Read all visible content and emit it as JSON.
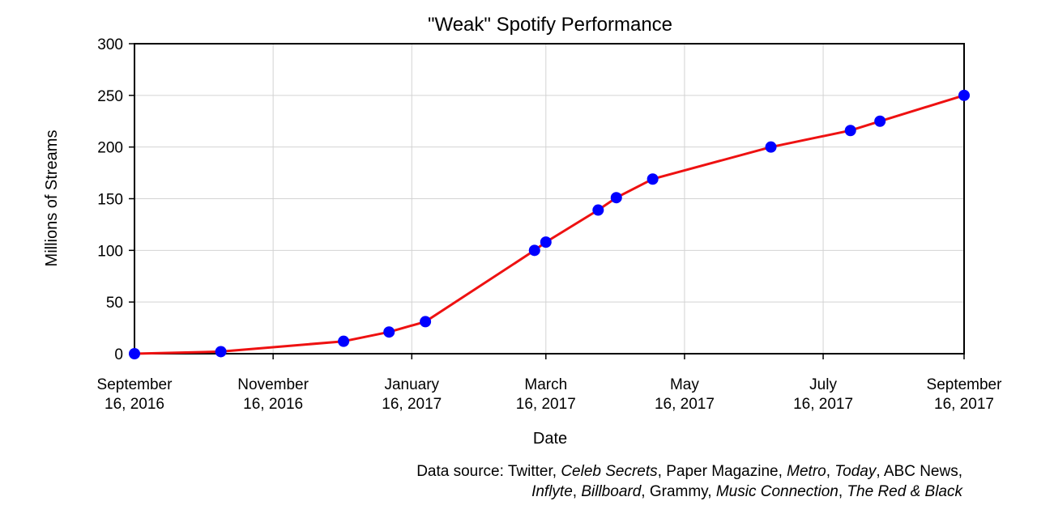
{
  "chart_data": {
    "type": "line",
    "title": "\"Weak\" Spotify Performance",
    "xlabel": "Date",
    "ylabel": "Millions of Streams",
    "xlim": [
      "2016-09-16",
      "2017-09-16"
    ],
    "ylim": [
      0,
      300
    ],
    "yticks": [
      0,
      50,
      100,
      150,
      200,
      250,
      300
    ],
    "xticks": [
      {
        "date": "2016-09-16",
        "line1": "September",
        "line2": "16, 2016"
      },
      {
        "date": "2016-11-16",
        "line1": "November",
        "line2": "16, 2016"
      },
      {
        "date": "2017-01-16",
        "line1": "January",
        "line2": "16, 2017"
      },
      {
        "date": "2017-03-16",
        "line1": "March",
        "line2": "16, 2017"
      },
      {
        "date": "2017-05-16",
        "line1": "May",
        "line2": "16, 2017"
      },
      {
        "date": "2017-07-16",
        "line1": "July",
        "line2": "16, 2017"
      },
      {
        "date": "2017-09-16",
        "line1": "September",
        "line2": "16, 2017"
      }
    ],
    "grid": true,
    "line_color": "#ee1111",
    "marker_color": "#0000ff",
    "series": [
      {
        "x": [
          "2016-09-16",
          "2016-10-24",
          "2016-12-17",
          "2017-01-06",
          "2017-01-22",
          "2017-03-11",
          "2017-03-16",
          "2017-04-08",
          "2017-04-16",
          "2017-05-02",
          "2017-06-23",
          "2017-07-28",
          "2017-08-10",
          "2017-09-16"
        ],
        "y": [
          0,
          2,
          12,
          21,
          31,
          100,
          108,
          139,
          151,
          169,
          200,
          216,
          225,
          250
        ]
      }
    ]
  },
  "source": {
    "line1": [
      {
        "text": "Data source: Twitter, ",
        "italic": false
      },
      {
        "text": "Celeb Secrets",
        "italic": true
      },
      {
        "text": ", Paper Magazine, ",
        "italic": false
      },
      {
        "text": "Metro",
        "italic": true
      },
      {
        "text": ", ",
        "italic": false
      },
      {
        "text": "Today",
        "italic": true
      },
      {
        "text": ", ABC News,",
        "italic": false
      }
    ],
    "line2": [
      {
        "text": "Inflyte",
        "italic": true
      },
      {
        "text": ", ",
        "italic": false
      },
      {
        "text": "Billboard",
        "italic": true
      },
      {
        "text": ", Grammy, ",
        "italic": false
      },
      {
        "text": "Music Connection",
        "italic": true
      },
      {
        "text": ", ",
        "italic": false
      },
      {
        "text": "The Red & Black",
        "italic": true
      }
    ]
  }
}
